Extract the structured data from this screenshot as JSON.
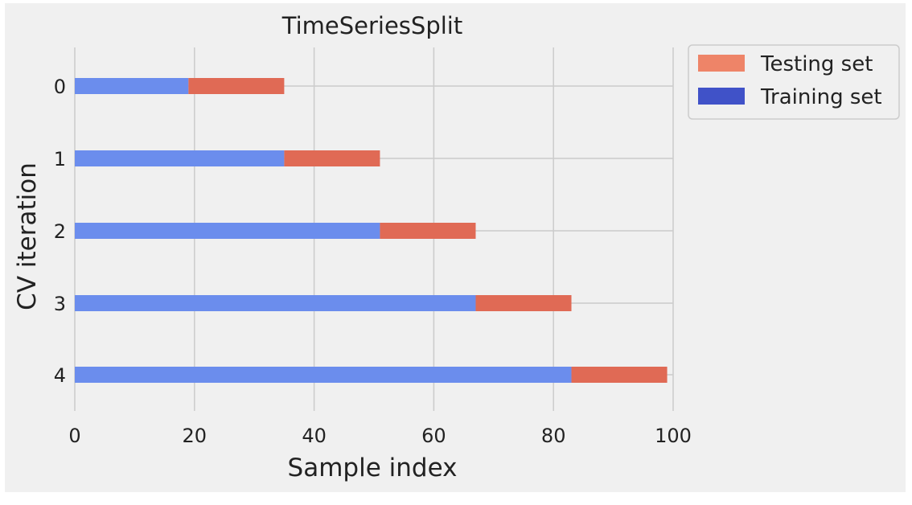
{
  "chart_data": {
    "type": "bar",
    "orientation": "horizontal",
    "title": "TimeSeriesSplit",
    "xlabel": "Sample index",
    "ylabel": "CV iteration",
    "xlim": [
      0,
      100
    ],
    "x_ticks": [
      0,
      20,
      40,
      60,
      80,
      100
    ],
    "categories": [
      "0",
      "1",
      "2",
      "3",
      "4"
    ],
    "grid": true,
    "legend_position": "outside-top-right",
    "series": [
      {
        "name": "Training set",
        "color": "#4052c8",
        "bar_color": "#6b8ded",
        "ranges": [
          [
            0,
            19
          ],
          [
            0,
            35
          ],
          [
            0,
            51
          ],
          [
            0,
            67
          ],
          [
            0,
            83
          ]
        ]
      },
      {
        "name": "Testing set",
        "color": "#ee8468",
        "bar_color": "#e06a55",
        "ranges": [
          [
            19,
            35
          ],
          [
            35,
            51
          ],
          [
            51,
            67
          ],
          [
            67,
            83
          ],
          [
            83,
            99
          ]
        ]
      }
    ],
    "legend_order": [
      "Testing set",
      "Training set"
    ]
  }
}
